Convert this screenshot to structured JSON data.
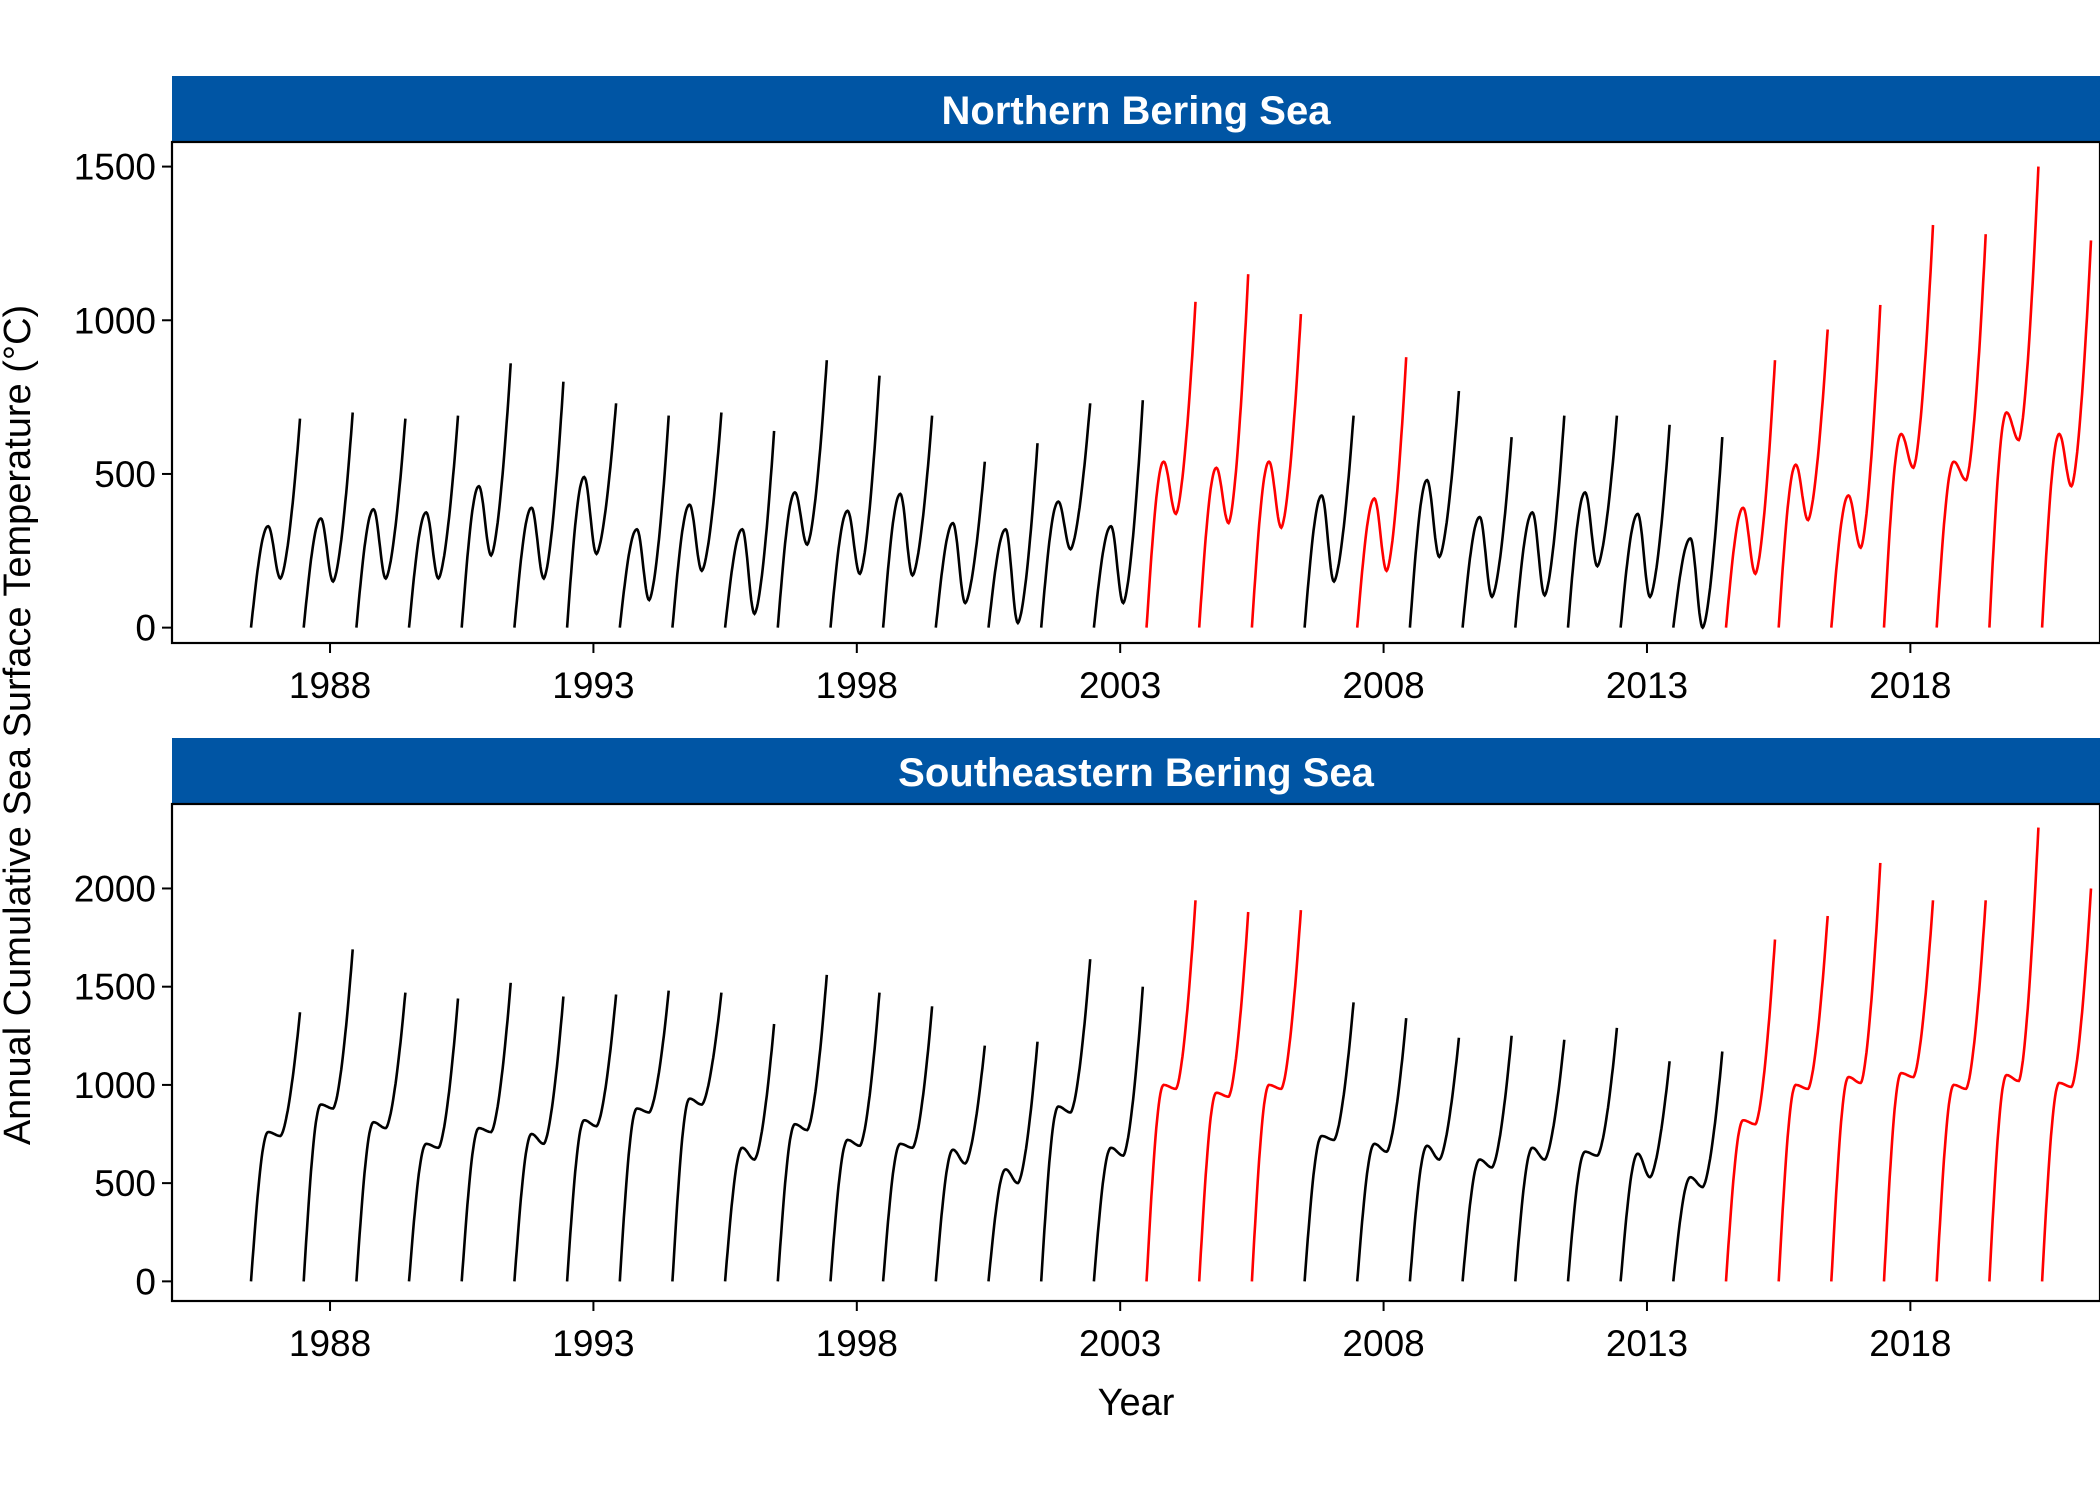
{
  "chart_data": {
    "type": "line",
    "xlabel": "Year",
    "ylabel": "Annual Cumulative Sea Surface Temperature (°C)",
    "x_ticks": [
      1988,
      1993,
      1998,
      2003,
      2008,
      2013,
      2018
    ],
    "x_range": [
      1985,
      2021.6
    ],
    "colors": {
      "normal": "#000000",
      "heatwave": "#ff0000",
      "strip": "#0055a4"
    },
    "panels": [
      {
        "title": "Northern Bering Sea",
        "ylim": [
          -50,
          1580
        ],
        "y_ticks": [
          0,
          500,
          1000,
          1500
        ],
        "years": [
          {
            "year": 1986,
            "summer_peak": 330,
            "late_min": 160,
            "end": 680
          },
          {
            "year": 1987,
            "summer_peak": 355,
            "late_min": 150,
            "end": 700
          },
          {
            "year": 1988,
            "summer_peak": 385,
            "late_min": 160,
            "end": 680
          },
          {
            "year": 1989,
            "summer_peak": 375,
            "late_min": 160,
            "end": 690
          },
          {
            "year": 1990,
            "summer_peak": 460,
            "late_min": 235,
            "end": 860
          },
          {
            "year": 1991,
            "summer_peak": 390,
            "late_min": 160,
            "end": 800
          },
          {
            "year": 1992,
            "summer_peak": 490,
            "late_min": 240,
            "end": 730
          },
          {
            "year": 1993,
            "summer_peak": 320,
            "late_min": 90,
            "end": 690
          },
          {
            "year": 1994,
            "summer_peak": 400,
            "late_min": 185,
            "end": 700
          },
          {
            "year": 1995,
            "summer_peak": 320,
            "late_min": 45,
            "end": 640
          },
          {
            "year": 1996,
            "summer_peak": 440,
            "late_min": 270,
            "end": 870
          },
          {
            "year": 1997,
            "summer_peak": 380,
            "late_min": 175,
            "end": 820
          },
          {
            "year": 1998,
            "summer_peak": 435,
            "late_min": 170,
            "end": 690
          },
          {
            "year": 1999,
            "summer_peak": 340,
            "late_min": 80,
            "end": 540
          },
          {
            "year": 2000,
            "summer_peak": 320,
            "late_min": 15,
            "end": 600
          },
          {
            "year": 2001,
            "summer_peak": 410,
            "late_min": 255,
            "end": 730
          },
          {
            "year": 2002,
            "summer_peak": 330,
            "late_min": 80,
            "end": 740
          },
          {
            "year": 2003,
            "summer_peak": 540,
            "late_min": 370,
            "end": 1060
          },
          {
            "year": 2004,
            "summer_peak": 520,
            "late_min": 340,
            "end": 1150
          },
          {
            "year": 2005,
            "summer_peak": 540,
            "late_min": 325,
            "end": 1020
          },
          {
            "year": 2006,
            "summer_peak": 430,
            "late_min": 150,
            "end": 690
          },
          {
            "year": 2007,
            "summer_peak": 420,
            "late_min": 185,
            "end": 880
          },
          {
            "year": 2008,
            "summer_peak": 480,
            "late_min": 230,
            "end": 770
          },
          {
            "year": 2009,
            "summer_peak": 360,
            "late_min": 100,
            "end": 620
          },
          {
            "year": 2010,
            "summer_peak": 375,
            "late_min": 105,
            "end": 690
          },
          {
            "year": 2011,
            "summer_peak": 440,
            "late_min": 200,
            "end": 690
          },
          {
            "year": 2012,
            "summer_peak": 370,
            "late_min": 100,
            "end": 660
          },
          {
            "year": 2013,
            "summer_peak": 290,
            "late_min": 0,
            "end": 620
          },
          {
            "year": 2014,
            "summer_peak": 390,
            "late_min": 175,
            "end": 870
          },
          {
            "year": 2015,
            "summer_peak": 530,
            "late_min": 350,
            "end": 970
          },
          {
            "year": 2016,
            "summer_peak": 430,
            "late_min": 260,
            "end": 1050
          },
          {
            "year": 2017,
            "summer_peak": 630,
            "late_min": 520,
            "end": 1310
          },
          {
            "year": 2018,
            "summer_peak": 540,
            "late_min": 480,
            "end": 1280
          },
          {
            "year": 2019,
            "summer_peak": 700,
            "late_min": 610,
            "end": 1500
          },
          {
            "year": 2020,
            "summer_peak": 630,
            "late_min": 460,
            "end": 1260
          }
        ]
      },
      {
        "title": "Southeastern Bering Sea",
        "ylim": [
          -100,
          2430
        ],
        "y_ticks": [
          0,
          500,
          1000,
          1500,
          2000
        ],
        "years": [
          {
            "year": 1986,
            "summer_peak": 760,
            "late_min": 740,
            "end": 1370
          },
          {
            "year": 1987,
            "summer_peak": 900,
            "late_min": 880,
            "end": 1690
          },
          {
            "year": 1988,
            "summer_peak": 810,
            "late_min": 780,
            "end": 1470
          },
          {
            "year": 1989,
            "summer_peak": 700,
            "late_min": 680,
            "end": 1440
          },
          {
            "year": 1990,
            "summer_peak": 780,
            "late_min": 760,
            "end": 1520
          },
          {
            "year": 1991,
            "summer_peak": 750,
            "late_min": 700,
            "end": 1450
          },
          {
            "year": 1992,
            "summer_peak": 820,
            "late_min": 790,
            "end": 1460
          },
          {
            "year": 1993,
            "summer_peak": 880,
            "late_min": 860,
            "end": 1480
          },
          {
            "year": 1994,
            "summer_peak": 930,
            "late_min": 900,
            "end": 1470
          },
          {
            "year": 1995,
            "summer_peak": 680,
            "late_min": 620,
            "end": 1310
          },
          {
            "year": 1996,
            "summer_peak": 800,
            "late_min": 770,
            "end": 1560
          },
          {
            "year": 1997,
            "summer_peak": 720,
            "late_min": 690,
            "end": 1470
          },
          {
            "year": 1998,
            "summer_peak": 700,
            "late_min": 680,
            "end": 1400
          },
          {
            "year": 1999,
            "summer_peak": 670,
            "late_min": 600,
            "end": 1200
          },
          {
            "year": 2000,
            "summer_peak": 570,
            "late_min": 500,
            "end": 1220
          },
          {
            "year": 2001,
            "summer_peak": 890,
            "late_min": 860,
            "end": 1640
          },
          {
            "year": 2002,
            "summer_peak": 680,
            "late_min": 640,
            "end": 1500
          },
          {
            "year": 2003,
            "summer_peak": 1000,
            "late_min": 980,
            "end": 1940
          },
          {
            "year": 2004,
            "summer_peak": 960,
            "late_min": 940,
            "end": 1880
          },
          {
            "year": 2005,
            "summer_peak": 1000,
            "late_min": 980,
            "end": 1890
          },
          {
            "year": 2006,
            "summer_peak": 740,
            "late_min": 720,
            "end": 1420
          },
          {
            "year": 2007,
            "summer_peak": 700,
            "late_min": 660,
            "end": 1340
          },
          {
            "year": 2008,
            "summer_peak": 690,
            "late_min": 620,
            "end": 1240
          },
          {
            "year": 2009,
            "summer_peak": 620,
            "late_min": 580,
            "end": 1250
          },
          {
            "year": 2010,
            "summer_peak": 680,
            "late_min": 620,
            "end": 1230
          },
          {
            "year": 2011,
            "summer_peak": 660,
            "late_min": 640,
            "end": 1290
          },
          {
            "year": 2012,
            "summer_peak": 650,
            "late_min": 530,
            "end": 1120
          },
          {
            "year": 2013,
            "summer_peak": 530,
            "late_min": 480,
            "end": 1170
          },
          {
            "year": 2014,
            "summer_peak": 820,
            "late_min": 800,
            "end": 1740
          },
          {
            "year": 2015,
            "summer_peak": 1000,
            "late_min": 980,
            "end": 1860
          },
          {
            "year": 2016,
            "summer_peak": 1040,
            "late_min": 1010,
            "end": 2130
          },
          {
            "year": 2017,
            "summer_peak": 1060,
            "late_min": 1040,
            "end": 1940
          },
          {
            "year": 2018,
            "summer_peak": 1000,
            "late_min": 980,
            "end": 1940
          },
          {
            "year": 2019,
            "summer_peak": 1050,
            "late_min": 1020,
            "end": 2310
          },
          {
            "year": 2020,
            "summer_peak": 1010,
            "late_min": 990,
            "end": 2000
          }
        ]
      }
    ],
    "heatwave_years": [
      {
        "panel": 0,
        "years": [
          2003,
          2004,
          2005,
          2007,
          2014,
          2015,
          2016,
          2017,
          2018,
          2019,
          2020
        ]
      },
      {
        "panel": 1,
        "years": [
          2003,
          2004,
          2005,
          2014,
          2015,
          2016,
          2017,
          2018,
          2019,
          2020
        ]
      }
    ]
  }
}
